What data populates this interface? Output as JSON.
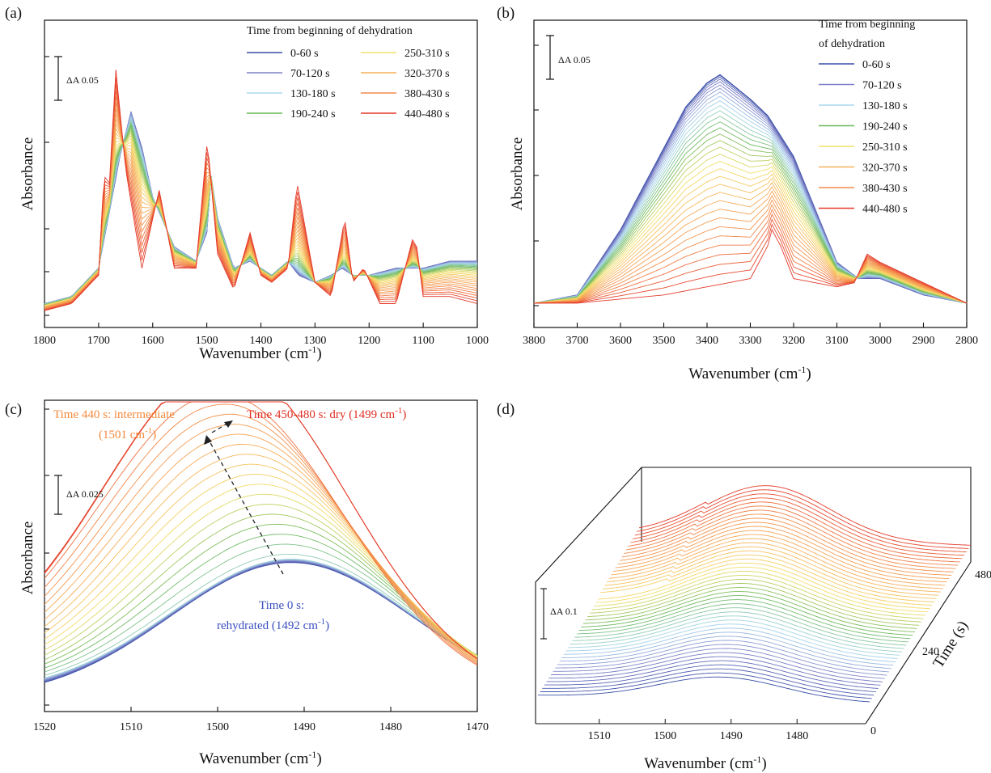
{
  "panels": {
    "a": {
      "label": "(a)",
      "ylabel": "Absorbance",
      "xlabel_main": "Wavenumber (cm",
      "xlabel_sup": "-1",
      "xlabel_end": ")",
      "legend_title": "Time from beginning of dehydration",
      "scale_bar": "ΔA 0.05"
    },
    "b": {
      "label": "(b)",
      "ylabel": "Absorbance",
      "xlabel_main": "Wavenumber (cm",
      "xlabel_sup": "-1",
      "xlabel_end": ")",
      "legend_title_1": "Time from beginning",
      "legend_title_2": "of dehydration",
      "scale_bar": "ΔA 0.05"
    },
    "c": {
      "label": "(c)",
      "ylabel": "Absorbance",
      "xlabel_main": "Wavenumber (cm",
      "xlabel_sup": "-1",
      "xlabel_end": ")",
      "scale_bar": "ΔA 0.025",
      "anno_intermediate_1": "Time 440 s: intermediate",
      "anno_intermediate_2": "(1501 cm",
      "anno_dry_1": "Time 450-480 s: dry (1499 cm",
      "anno_rehyd_1": "Time 0 s:",
      "anno_rehyd_2": "rehydrated (1492 cm",
      "sup": "-1",
      "close": ")"
    },
    "d": {
      "label": "(d)",
      "xlabel_main": "Wavenumber (cm",
      "xlabel_sup": "-1",
      "xlabel_end": ")",
      "time_label": "Time (s)",
      "scale_bar": "ΔA 0.1"
    }
  },
  "colors": {
    "series": [
      "#3a4fa8",
      "#7f82c8",
      "#a9d8ef",
      "#6cb85a",
      "#f3e06a",
      "#f7b15a",
      "#f38a4a",
      "#e43a2a"
    ]
  },
  "chart_data": [
    {
      "type": "line",
      "panel": "a",
      "xlabel": "Wavenumber (cm-1)",
      "ylabel": "Absorbance",
      "xlim": [
        1800,
        1000
      ],
      "x_ticks": [
        1800,
        1700,
        1600,
        1500,
        1400,
        1300,
        1200,
        1100,
        1000
      ],
      "legend_title": "Time from beginning of dehydration",
      "legend": [
        "0-60 s",
        "70-120 s",
        "130-180 s",
        "190-240 s",
        "250-310 s",
        "320-370 s",
        "380-430 s",
        "440-480 s"
      ],
      "series": [
        {
          "name": "0-60 s",
          "x": [
            1800,
            1750,
            1700,
            1680,
            1660,
            1640,
            1620,
            1600,
            1560,
            1520,
            1500,
            1492,
            1480,
            1450,
            1420,
            1400,
            1380,
            1350,
            1330,
            1300,
            1270,
            1250,
            1230,
            1200,
            1150,
            1100,
            1050,
            1000
          ],
          "y": [
            0.0,
            0.01,
            0.05,
            0.13,
            0.21,
            0.27,
            0.22,
            0.15,
            0.08,
            0.06,
            0.1,
            0.18,
            0.12,
            0.05,
            0.06,
            0.05,
            0.04,
            0.06,
            0.04,
            0.03,
            0.04,
            0.05,
            0.04,
            0.04,
            0.05,
            0.05,
            0.06,
            0.06
          ]
        },
        {
          "name": "440-480 s",
          "x": [
            1800,
            1750,
            1700,
            1690,
            1680,
            1668,
            1650,
            1620,
            1600,
            1588,
            1560,
            1520,
            1505,
            1499,
            1480,
            1450,
            1420,
            1400,
            1380,
            1350,
            1333,
            1300,
            1270,
            1245,
            1230,
            1210,
            1180,
            1150,
            1120,
            1112,
            1100,
            1050,
            1000
          ],
          "y": [
            -0.01,
            0.0,
            0.04,
            0.18,
            0.17,
            0.33,
            0.19,
            0.05,
            0.12,
            0.16,
            0.05,
            0.05,
            0.18,
            0.23,
            0.07,
            0.02,
            0.1,
            0.04,
            0.03,
            0.05,
            0.17,
            0.03,
            0.01,
            0.12,
            0.03,
            0.05,
            0.0,
            0.0,
            0.09,
            0.08,
            0.01,
            0.01,
            0.0
          ]
        }
      ]
    },
    {
      "type": "line",
      "panel": "b",
      "xlabel": "Wavenumber (cm-1)",
      "ylabel": "Absorbance",
      "xlim": [
        3800,
        2800
      ],
      "x_ticks": [
        3800,
        3700,
        3600,
        3500,
        3400,
        3300,
        3200,
        3100,
        3000,
        2900,
        2800
      ],
      "legend_title": "Time from beginning of dehydration",
      "legend": [
        "0-60 s",
        "70-120 s",
        "130-180 s",
        "190-240 s",
        "250-310 s",
        "320-370 s",
        "380-430 s",
        "440-480 s"
      ],
      "series": [
        {
          "name": "0-60 s",
          "x": [
            3800,
            3700,
            3600,
            3500,
            3450,
            3400,
            3370,
            3300,
            3260,
            3200,
            3100,
            3050,
            3000,
            2900,
            2800
          ],
          "y": [
            0.0,
            0.01,
            0.09,
            0.19,
            0.24,
            0.27,
            0.28,
            0.25,
            0.23,
            0.18,
            0.05,
            0.03,
            0.03,
            0.01,
            0.0
          ]
        },
        {
          "name": "440-480 s",
          "x": [
            3800,
            3700,
            3600,
            3500,
            3400,
            3300,
            3260,
            3250,
            3230,
            3200,
            3100,
            3060,
            3030,
            3000,
            2900,
            2800
          ],
          "y": [
            0.0,
            0.0,
            0.005,
            0.01,
            0.02,
            0.03,
            0.07,
            0.09,
            0.07,
            0.03,
            0.02,
            0.025,
            0.06,
            0.05,
            0.025,
            0.0
          ]
        }
      ]
    },
    {
      "type": "line",
      "panel": "c",
      "xlabel": "Wavenumber (cm-1)",
      "ylabel": "Absorbance",
      "xlim": [
        1520,
        1470
      ],
      "x_ticks": [
        1520,
        1510,
        1500,
        1490,
        1480,
        1470
      ],
      "annotations": [
        "Time 440 s: intermediate (1501 cm-1)",
        "Time 450-480 s: dry (1499 cm-1)",
        "Time 0 s: rehydrated (1492 cm-1)"
      ],
      "series": [
        {
          "name": "0 s (rehydrated)",
          "peak_x": 1492
        },
        {
          "name": "440 s (intermediate)",
          "peak_x": 1501
        },
        {
          "name": "450-480 s (dry)",
          "peak_x": 1499
        }
      ]
    },
    {
      "type": "line",
      "panel": "d",
      "xlabel": "Wavenumber (cm-1)",
      "zlabel": "Time (s)",
      "x_ticks": [
        1510,
        1500,
        1490,
        1480
      ],
      "time_ticks": [
        0,
        240,
        480
      ],
      "scale_bar": "ΔA 0.1"
    }
  ]
}
